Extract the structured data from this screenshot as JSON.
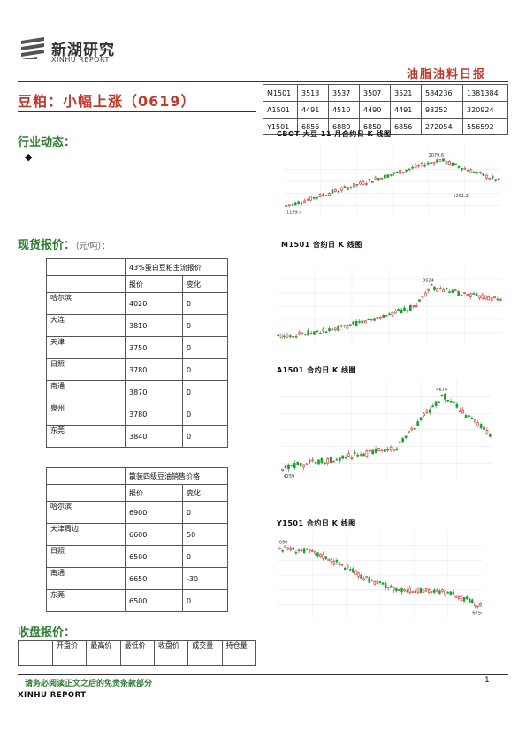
{
  "header": {
    "logo_cn": "新湖研究",
    "logo_en": "XINHU REPORT",
    "report_title": "油脂油料日报"
  },
  "main_title": "豆粕：小幅上涨（0619）",
  "quote_table": {
    "rows": [
      [
        "M1501",
        "3513",
        "3537",
        "3507",
        "3521",
        "584236",
        "1381384"
      ],
      [
        "A1501",
        "4491",
        "4510",
        "4490",
        "4491",
        "93252",
        "320924"
      ],
      [
        "Y1501",
        "6856",
        "6880",
        "6850",
        "6856",
        "272054",
        "556592"
      ]
    ]
  },
  "industry": {
    "title": "行业动态：",
    "bullet": "◆"
  },
  "spot": {
    "title": "现货报价：",
    "unit": "（元/吨）："
  },
  "meal_table": {
    "group_header": "43%蛋白豆粕主流报价",
    "col_price": "报价",
    "col_change": "变化",
    "rows": [
      [
        "哈尔滨",
        "4020",
        "0"
      ],
      [
        "大连",
        "3810",
        "0"
      ],
      [
        "天津",
        "3750",
        "0"
      ],
      [
        "日照",
        "3780",
        "0"
      ],
      [
        "南通",
        "3870",
        "0"
      ],
      [
        "泉州",
        "3780",
        "0"
      ],
      [
        "东莞",
        "3840",
        "0"
      ]
    ]
  },
  "oil_table": {
    "group_header": "散装四级豆油销售价格",
    "col_price": "报价",
    "col_change": "变化",
    "rows": [
      [
        "哈尔滨",
        "6900",
        "0"
      ],
      [
        "天津周边",
        "6600",
        "50"
      ],
      [
        "日照",
        "6500",
        "0"
      ],
      [
        "南通",
        "6650",
        "-30"
      ],
      [
        "东莞",
        "6500",
        "0"
      ]
    ]
  },
  "close": {
    "title": "收盘报价：",
    "headers": [
      "开盘价",
      "最高价",
      "最低价",
      "收盘价",
      "成交量",
      "持仓量"
    ]
  },
  "charts": [
    {
      "title": "CBOT 大豆 11 月合约日 K 线图",
      "high_label": "1079.6",
      "low_label": "1169.4",
      "low2_label": "1201.2"
    },
    {
      "title": "M1501 合约日 K 线图",
      "high_label": "3624"
    },
    {
      "title": "A1501 合约日 K 线图",
      "high_label": "4674",
      "low_label": "4259"
    },
    {
      "title": "Y1501 合约日 K 线图",
      "high_label": "7090",
      "low_label": "6754"
    }
  ],
  "chart_data": [
    {
      "type": "candlestick",
      "title": "CBOT 大豆 11 月合约日 K 线图"
    },
    {
      "type": "candlestick",
      "title": "M1501 合约日 K 线图"
    },
    {
      "type": "candlestick",
      "title": "A1501 合约日 K 线图"
    },
    {
      "type": "candlestick",
      "title": "Y1501 合约日 K 线图"
    }
  ],
  "footer": {
    "disclaimer": "请务必阅读正文之后的免责条款部分",
    "brand": "XINHU REPORT",
    "page": "1"
  },
  "colors": {
    "accent_red": "#c0392b",
    "accent_green": "#2e7d32",
    "up": "#d62728",
    "down": "#1e9e2e"
  }
}
